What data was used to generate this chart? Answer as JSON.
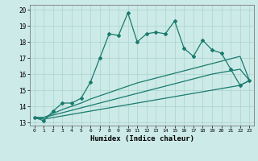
{
  "xlabel": "Humidex (Indice chaleur)",
  "bg_color": "#cceae7",
  "line_color": "#1a7a6e",
  "grid_color": "#aad4cf",
  "xlim": [
    -0.5,
    23.5
  ],
  "ylim": [
    12.8,
    20.3
  ],
  "yticks": [
    13,
    14,
    15,
    16,
    17,
    18,
    19,
    20
  ],
  "xticks": [
    0,
    1,
    2,
    3,
    4,
    5,
    6,
    7,
    8,
    9,
    10,
    11,
    12,
    13,
    14,
    15,
    16,
    17,
    18,
    19,
    20,
    21,
    22,
    23
  ],
  "main_line": [
    13.3,
    13.1,
    13.7,
    14.2,
    14.2,
    14.5,
    15.5,
    17.0,
    18.5,
    18.4,
    19.8,
    18.0,
    18.5,
    18.6,
    18.5,
    19.3,
    17.6,
    17.1,
    18.1,
    17.5,
    17.3,
    16.3,
    15.3,
    15.6
  ],
  "linear1": [
    13.3,
    13.3,
    13.55,
    13.8,
    14.0,
    14.2,
    14.45,
    14.65,
    14.85,
    15.05,
    15.25,
    15.45,
    15.6,
    15.75,
    15.9,
    16.05,
    16.2,
    16.35,
    16.5,
    16.65,
    16.8,
    16.95,
    17.1,
    15.6
  ],
  "linear2": [
    13.3,
    13.3,
    13.45,
    13.6,
    13.75,
    13.9,
    14.05,
    14.2,
    14.35,
    14.5,
    14.65,
    14.8,
    14.95,
    15.1,
    15.25,
    15.4,
    15.55,
    15.7,
    15.85,
    16.0,
    16.1,
    16.2,
    16.3,
    15.6
  ],
  "linear3": [
    13.3,
    13.2,
    13.3,
    13.4,
    13.5,
    13.6,
    13.7,
    13.8,
    13.9,
    14.0,
    14.1,
    14.2,
    14.3,
    14.4,
    14.5,
    14.6,
    14.7,
    14.8,
    14.9,
    15.0,
    15.1,
    15.2,
    15.3,
    15.6
  ]
}
